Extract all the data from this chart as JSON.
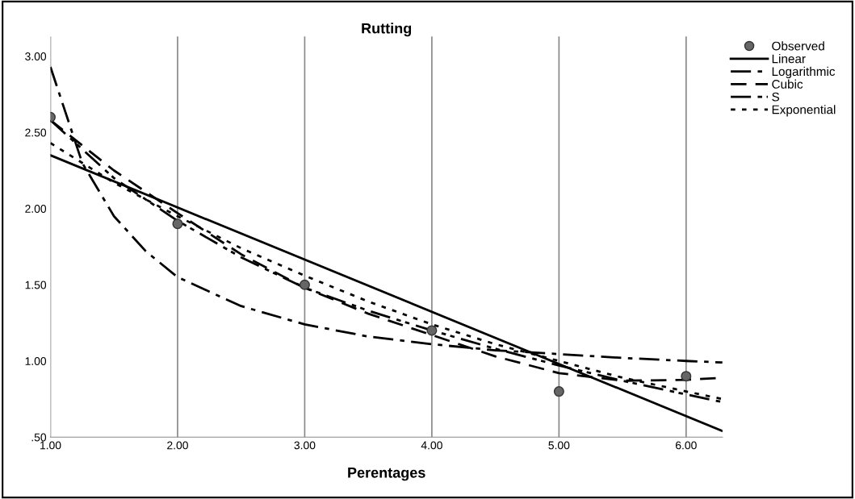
{
  "chart_data": {
    "type": "line",
    "title": "Rutting",
    "xlabel": "Perentages",
    "xlim": [
      1,
      6.286
    ],
    "ylim": [
      0.5,
      3.13
    ],
    "xticks": [
      {
        "value": 1,
        "label": "1.00"
      },
      {
        "value": 2,
        "label": "2.00"
      },
      {
        "value": 3,
        "label": "3.00"
      },
      {
        "value": 4,
        "label": "4.00"
      },
      {
        "value": 5,
        "label": "5.00"
      },
      {
        "value": 6,
        "label": "6.00"
      }
    ],
    "yticks": [
      {
        "value": 0.5,
        "label": ".50"
      },
      {
        "value": 1,
        "label": "1.00"
      },
      {
        "value": 1.5,
        "label": "1.50"
      },
      {
        "value": 2,
        "label": "2.00"
      },
      {
        "value": 2.5,
        "label": "2.50"
      },
      {
        "value": 3,
        "label": "3.00"
      }
    ],
    "grid": "x",
    "legend": "top right",
    "series": [
      {
        "name": "Observed",
        "type": "scatter",
        "marker": "circle",
        "color": "#666666",
        "x": [
          1,
          2,
          3,
          4,
          5,
          6
        ],
        "values": [
          2.6,
          1.9,
          1.5,
          1.2,
          0.8,
          0.9
        ]
      },
      {
        "name": "Linear",
        "color": "#000000",
        "line_style": "solid",
        "x": [
          1,
          6.286
        ],
        "values": [
          2.35,
          0.54
        ]
      },
      {
        "name": "Logarithmic",
        "color": "#000000",
        "line_style": "dashdot",
        "x": [
          1,
          1.25,
          1.5,
          1.75,
          2,
          2.5,
          3,
          3.5,
          4,
          4.5,
          5,
          5.5,
          6,
          6.286
        ],
        "values": [
          2.93,
          2.3,
          1.95,
          1.72,
          1.55,
          1.36,
          1.24,
          1.16,
          1.11,
          1.07,
          1.045,
          1.02,
          1.0,
          0.99
        ]
      },
      {
        "name": "Cubic",
        "color": "#000000",
        "line_style": "dashed",
        "x": [
          1,
          1.5,
          2,
          2.5,
          3,
          3.5,
          4,
          4.5,
          5,
          5.5,
          6,
          6.286
        ],
        "values": [
          2.58,
          2.25,
          1.97,
          1.7,
          1.48,
          1.31,
          1.17,
          1.03,
          0.92,
          0.87,
          0.876,
          0.89
        ]
      },
      {
        "name": "S",
        "color": "#000000",
        "line_style": "dashdotdot",
        "x": [
          1,
          1.5,
          2,
          2.5,
          3,
          3.5,
          4,
          4.5,
          5,
          5.5,
          6,
          6.286
        ],
        "values": [
          2.58,
          2.2,
          1.92,
          1.68,
          1.48,
          1.33,
          1.2,
          1.08,
          0.97,
          0.87,
          0.78,
          0.73
        ]
      },
      {
        "name": "Exponential",
        "color": "#000000",
        "line_style": "dotted",
        "x": [
          1,
          1.5,
          2,
          2.5,
          3,
          3.5,
          4,
          4.5,
          5,
          5.5,
          6,
          6.286
        ],
        "values": [
          2.43,
          2.17,
          1.95,
          1.74,
          1.56,
          1.39,
          1.24,
          1.11,
          1.0,
          0.89,
          0.8,
          0.75
        ]
      }
    ]
  }
}
